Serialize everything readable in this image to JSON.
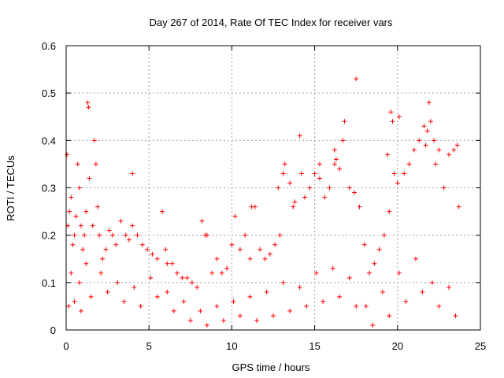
{
  "chart_data": {
    "type": "scatter",
    "title": "Day 267 of 2014, Rate Of TEC Index for receiver vars",
    "xlabel": "GPS time / hours",
    "ylabel": "ROTI / TECUs",
    "xlim": [
      0,
      25
    ],
    "ylim": [
      0,
      0.6
    ],
    "xticks": [
      0,
      5,
      10,
      15,
      20,
      25
    ],
    "yticks": [
      0,
      0.1,
      0.2,
      0.3,
      0.4,
      0.5,
      0.6
    ],
    "xtick_labels": [
      "0",
      "5",
      "10",
      "15",
      "20",
      "25"
    ],
    "ytick_labels": [
      "0",
      "0.1",
      "0.2",
      "0.3",
      "0.4",
      "0.5",
      "0.6"
    ],
    "grid": true,
    "marker": "+",
    "color": "#ff0000",
    "series": [
      {
        "name": "ROTI",
        "x": [
          0.05,
          0.1,
          0.2,
          0.3,
          0.4,
          0.5,
          0.6,
          0.7,
          0.8,
          0.9,
          1.0,
          1.1,
          1.2,
          1.3,
          1.35,
          1.4,
          1.6,
          1.7,
          1.8,
          1.9,
          2.0,
          2.2,
          2.4,
          2.6,
          2.8,
          3.0,
          3.3,
          3.6,
          3.8,
          4.0,
          4.3,
          4.6,
          4.9,
          5.2,
          5.5,
          5.8,
          6.1,
          6.4,
          6.7,
          7.0,
          7.3,
          7.6,
          7.9,
          8.2,
          8.5,
          8.8,
          9.1,
          9.4,
          9.7,
          10.0,
          10.2,
          10.5,
          10.8,
          11.1,
          11.4,
          11.7,
          12.0,
          12.3,
          12.6,
          12.9,
          13.2,
          13.5,
          13.8,
          14.1,
          14.4,
          14.7,
          15.0,
          15.3,
          15.6,
          15.9,
          16.2,
          16.5,
          16.8,
          17.1,
          17.4,
          17.5,
          17.7,
          18.0,
          18.3,
          18.6,
          18.9,
          19.2,
          19.5,
          19.8,
          20.1,
          20.4,
          20.7,
          21.0,
          21.3,
          21.6,
          21.9,
          22.2,
          22.5,
          22.8,
          23.1,
          23.4,
          23.6,
          23.7,
          0.15,
          0.5,
          0.9,
          1.5,
          2.5,
          3.5,
          4.5,
          5.5,
          6.5,
          7.5,
          8.5,
          9.5,
          10.5,
          11.5,
          12.5,
          13.5,
          14.5,
          15.5,
          16.5,
          17.5,
          18.5,
          19.5,
          20.5,
          21.5,
          22.5,
          23.5,
          0.3,
          0.8,
          1.2,
          2.1,
          3.1,
          4.1,
          5.1,
          6.1,
          7.1,
          8.1,
          9.1,
          10.1,
          11.1,
          12.1,
          13.1,
          14.1,
          15.1,
          16.1,
          17.1,
          18.1,
          19.1,
          20.1,
          21.1,
          22.1,
          23.1,
          12.8,
          13.7,
          15.3,
          16.2,
          16.7,
          19.6,
          19.7,
          21.8,
          22.0,
          22.3,
          19.4,
          21.7,
          20.0,
          16.3,
          14.2,
          13.1,
          4.0,
          6.0,
          8.4,
          11.2
        ],
        "y": [
          0.37,
          0.22,
          0.25,
          0.28,
          0.18,
          0.2,
          0.24,
          0.35,
          0.3,
          0.22,
          0.17,
          0.2,
          0.25,
          0.48,
          0.47,
          0.32,
          0.22,
          0.4,
          0.35,
          0.26,
          0.2,
          0.15,
          0.17,
          0.21,
          0.2,
          0.18,
          0.23,
          0.2,
          0.19,
          0.22,
          0.2,
          0.18,
          0.17,
          0.16,
          0.15,
          0.25,
          0.14,
          0.14,
          0.12,
          0.11,
          0.11,
          0.1,
          0.09,
          0.23,
          0.2,
          0.12,
          0.15,
          0.12,
          0.13,
          0.18,
          0.24,
          0.17,
          0.2,
          0.15,
          0.26,
          0.17,
          0.15,
          0.16,
          0.18,
          0.2,
          0.35,
          0.31,
          0.27,
          0.41,
          0.28,
          0.3,
          0.33,
          0.35,
          0.28,
          0.3,
          0.38,
          0.34,
          0.44,
          0.3,
          0.29,
          0.53,
          0.26,
          0.18,
          0.12,
          0.14,
          0.17,
          0.2,
          0.25,
          0.33,
          0.45,
          0.33,
          0.35,
          0.38,
          0.4,
          0.43,
          0.48,
          0.4,
          0.38,
          0.3,
          0.37,
          0.38,
          0.39,
          0.26,
          0.05,
          0.06,
          0.04,
          0.07,
          0.08,
          0.06,
          0.05,
          0.07,
          0.04,
          0.02,
          0.01,
          0.02,
          0.03,
          0.02,
          0.03,
          0.04,
          0.05,
          0.06,
          0.07,
          0.05,
          0.01,
          0.03,
          0.06,
          0.08,
          0.05,
          0.03,
          0.12,
          0.1,
          0.14,
          0.12,
          0.1,
          0.09,
          0.11,
          0.08,
          0.06,
          0.04,
          0.05,
          0.06,
          0.07,
          0.08,
          0.1,
          0.09,
          0.12,
          0.13,
          0.11,
          0.05,
          0.08,
          0.12,
          0.15,
          0.1,
          0.09,
          0.3,
          0.26,
          0.32,
          0.35,
          0.4,
          0.46,
          0.44,
          0.42,
          0.44,
          0.35,
          0.37,
          0.39,
          0.31,
          0.36,
          0.33,
          0.33,
          0.33,
          0.17,
          0.2,
          0.26
        ]
      }
    ]
  }
}
